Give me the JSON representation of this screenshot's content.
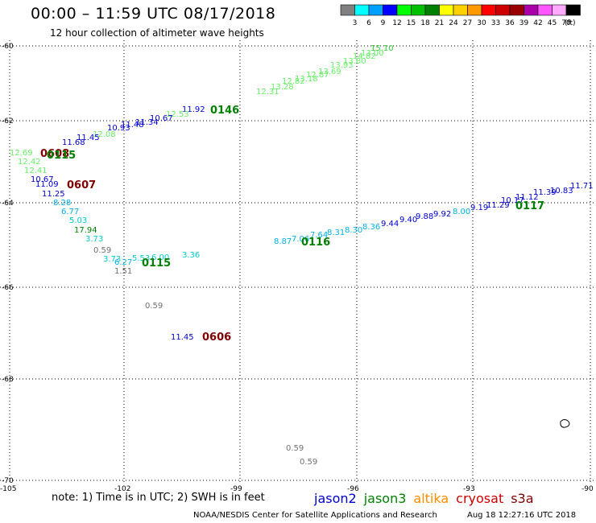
{
  "header": {
    "title": "00:00 – 11:59 UTC 08/17/2018",
    "subtitle": "12 hour collection of altimeter wave heights"
  },
  "footer": {
    "note": "note: 1) Time is in UTC; 2) SWH is in feet",
    "credit": "NOAA/NESDIS Center for Satellite Applications and Research",
    "timestamp": "Aug 18 12:27:16 UTC 2018"
  },
  "satellites": [
    {
      "name": "jason2",
      "color": "#0000cc"
    },
    {
      "name": "jason3",
      "color": "#008000"
    },
    {
      "name": "altika",
      "color": "#ff8c00"
    },
    {
      "name": "cryosat",
      "color": "#cc0000"
    },
    {
      "name": "s3a",
      "color": "#800000"
    }
  ],
  "colorbar": {
    "labels": [
      "3",
      "6",
      "9",
      "12",
      "15",
      "18",
      "21",
      "24",
      "27",
      "30",
      "33",
      "36",
      "39",
      "42",
      "45",
      "70"
    ],
    "unit": "(ft)",
    "colors": [
      "#808080",
      "#00ffff",
      "#00a0ff",
      "#0000ff",
      "#00ff00",
      "#00c000",
      "#008000",
      "#ffff00",
      "#ffd000",
      "#ff9900",
      "#ff0000",
      "#cc0000",
      "#990000",
      "#aa00aa",
      "#ff55ff",
      "#ffaaff",
      "#000000"
    ]
  },
  "axes": {
    "lat_labels": [
      "-60",
      "-62",
      "-64",
      "-66",
      "-68",
      "-70"
    ],
    "lon_labels": [
      "-105",
      "-102",
      "-99",
      "-96",
      "-93",
      "-90"
    ]
  },
  "times": [
    {
      "text": "0146",
      "color": "#008000"
    },
    {
      "text": "0608",
      "color": "#800000"
    },
    {
      "text": "0115",
      "color": "#008000"
    },
    {
      "text": "0607",
      "color": "#800000"
    },
    {
      "text": "0115",
      "color": "#008000"
    },
    {
      "text": "0116",
      "color": "#008000"
    },
    {
      "text": "0117",
      "color": "#008000"
    },
    {
      "text": "0606",
      "color": "#800000"
    }
  ],
  "values": [
    {
      "text": "15.10",
      "color": "#33cc33"
    },
    {
      "text": "13.00",
      "color": "#66ee66"
    },
    {
      "text": "14.82",
      "color": "#66ee66"
    },
    {
      "text": "13.80",
      "color": "#66ee66"
    },
    {
      "text": "13.93",
      "color": "#66ee66"
    },
    {
      "text": "13.69",
      "color": "#66ee66"
    },
    {
      "text": "12.87",
      "color": "#66ee66"
    },
    {
      "text": "13.18",
      "color": "#66ee66"
    },
    {
      "text": "12.82",
      "color": "#66ee66"
    },
    {
      "text": "13.28",
      "color": "#66ee66"
    },
    {
      "text": "12.31",
      "color": "#66ee66"
    },
    {
      "text": "11.92",
      "color": "#0000cc"
    },
    {
      "text": "12.53",
      "color": "#66ee66"
    },
    {
      "text": "10.67",
      "color": "#0000cc"
    },
    {
      "text": "11.34",
      "color": "#0000cc"
    },
    {
      "text": "10.93",
      "color": "#0000cc"
    },
    {
      "text": "11.48",
      "color": "#0000cc"
    },
    {
      "text": "12.08",
      "color": "#66ee66"
    },
    {
      "text": "11.45",
      "color": "#0000cc"
    },
    {
      "text": "11.68",
      "color": "#0000cc"
    },
    {
      "text": "12.69",
      "color": "#66ee66"
    },
    {
      "text": "12.42",
      "color": "#66ee66"
    },
    {
      "text": "12.41",
      "color": "#66ee66"
    },
    {
      "text": "10.67",
      "color": "#0000cc"
    },
    {
      "text": "11.09",
      "color": "#0000cc"
    },
    {
      "text": "11.25",
      "color": "#0000cc"
    },
    {
      "text": "8.28",
      "color": "#00b0e0"
    },
    {
      "text": "6.77",
      "color": "#00b0e0"
    },
    {
      "text": "5.03",
      "color": "#00cccc"
    },
    {
      "text": "17.94",
      "color": "#008000"
    },
    {
      "text": "3.73",
      "color": "#00cccc"
    },
    {
      "text": "0.59",
      "color": "#707070"
    },
    {
      "text": "3.73",
      "color": "#00cccc"
    },
    {
      "text": "6.27",
      "color": "#00b0e0"
    },
    {
      "text": "5.53",
      "color": "#00cccc"
    },
    {
      "text": "6.00",
      "color": "#00cccc"
    },
    {
      "text": "3.36",
      "color": "#00cccc"
    },
    {
      "text": "1.51",
      "color": "#707070"
    },
    {
      "text": "0.59",
      "color": "#707070"
    },
    {
      "text": "11.45",
      "color": "#0000cc"
    },
    {
      "text": "8.87",
      "color": "#00b0e0"
    },
    {
      "text": "7.06",
      "color": "#00b0e0"
    },
    {
      "text": "7.64",
      "color": "#00b0e0"
    },
    {
      "text": "8.31",
      "color": "#00b0e0"
    },
    {
      "text": "8.30",
      "color": "#00b0e0"
    },
    {
      "text": "8.36",
      "color": "#00b0e0"
    },
    {
      "text": "9.44",
      "color": "#0000cc"
    },
    {
      "text": "9.40",
      "color": "#0000cc"
    },
    {
      "text": "9.88",
      "color": "#0000cc"
    },
    {
      "text": "9.92",
      "color": "#0000cc"
    },
    {
      "text": "8.00",
      "color": "#00b0e0"
    },
    {
      "text": "9.19",
      "color": "#0000cc"
    },
    {
      "text": "11.29",
      "color": "#0000cc"
    },
    {
      "text": "10.17",
      "color": "#0000cc"
    },
    {
      "text": "11.12",
      "color": "#0000cc"
    },
    {
      "text": "11.39",
      "color": "#0000cc"
    },
    {
      "text": "10.83",
      "color": "#0000cc"
    },
    {
      "text": "11.71",
      "color": "#0000cc"
    },
    {
      "text": "0.59",
      "color": "#707070"
    },
    {
      "text": "0.59",
      "color": "#707070"
    }
  ]
}
